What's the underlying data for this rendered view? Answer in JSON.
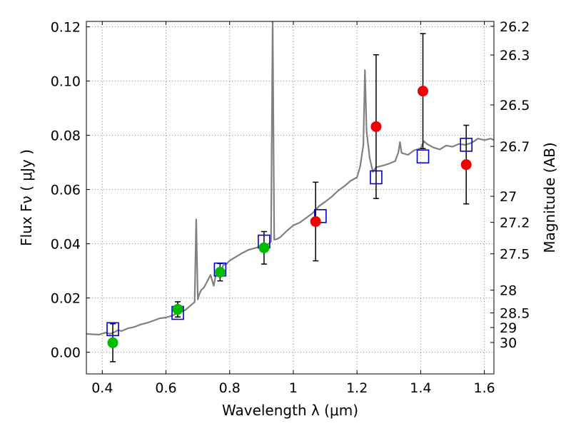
{
  "chart_data": {
    "type": "scatter",
    "title": "",
    "xlabel": "Wavelength  λ (μm)",
    "ylabel": "Flux  Fν  ( μJy )",
    "y2label": "Magnitude (AB)",
    "xlim": [
      0.35,
      1.63
    ],
    "ylim": [
      -0.008,
      0.122
    ],
    "grid": true,
    "x_ticks": [
      0.4,
      0.6,
      0.8,
      1.0,
      1.2,
      1.4,
      1.6
    ],
    "x_tick_labels": [
      "0.4",
      "0.6",
      "0.8",
      "1",
      "1.2",
      "1.4",
      "1.6"
    ],
    "y_ticks": [
      0.0,
      0.02,
      0.04,
      0.06,
      0.08,
      0.1,
      0.12
    ],
    "y_tick_labels": [
      "0.00",
      "0.02",
      "0.04",
      "0.06",
      "0.08",
      "0.10",
      "0.12"
    ],
    "y2_ticks": [
      {
        "label": "26.2",
        "flux": 0.1202
      },
      {
        "label": "26.3",
        "flux": 0.1096
      },
      {
        "label": "26.5",
        "flux": 0.0912
      },
      {
        "label": "26.7",
        "flux": 0.0759
      },
      {
        "label": "27",
        "flux": 0.0575
      },
      {
        "label": "27.2",
        "flux": 0.0479
      },
      {
        "label": "27.5",
        "flux": 0.0363
      },
      {
        "label": "28",
        "flux": 0.0229
      },
      {
        "label": "28.5",
        "flux": 0.0145
      },
      {
        "label": "29",
        "flux": 0.0091
      },
      {
        "label": "30",
        "flux": 0.0036
      }
    ],
    "colors": {
      "model_spectrum": "#808080",
      "model_photometry": "#0000cc",
      "optical_points": "#00bb00",
      "nir_points": "#ee0000",
      "errorbar": "#000000",
      "grid": "#7f7f7f"
    },
    "series": [
      {
        "type": "line",
        "x": [
          0.35,
          0.37,
          0.39,
          0.41,
          0.425,
          0.44,
          0.45,
          0.46,
          0.48,
          0.5,
          0.52,
          0.54,
          0.56,
          0.58,
          0.6,
          0.62,
          0.64,
          0.66,
          0.68,
          0.69,
          0.695,
          0.7,
          0.705,
          0.71,
          0.72,
          0.73,
          0.74,
          0.75,
          0.76,
          0.77,
          0.78,
          0.79,
          0.8,
          0.82,
          0.84,
          0.86,
          0.88,
          0.9,
          0.92,
          0.93,
          0.935,
          0.94,
          0.95,
          0.96,
          0.98,
          1.0,
          1.02,
          1.04,
          1.06,
          1.08,
          1.1,
          1.12,
          1.14,
          1.16,
          1.18,
          1.2,
          1.21,
          1.22,
          1.225,
          1.23,
          1.24,
          1.25,
          1.26,
          1.28,
          1.3,
          1.32,
          1.33,
          1.335,
          1.34,
          1.36,
          1.38,
          1.4,
          1.41,
          1.42,
          1.44,
          1.46,
          1.48,
          1.5,
          1.52,
          1.54,
          1.56,
          1.58,
          1.6,
          1.62,
          1.63
        ],
        "values": [
          0.0068,
          0.0066,
          0.0065,
          0.0072,
          0.0068,
          0.0075,
          0.0082,
          0.0078,
          0.0088,
          0.0093,
          0.0102,
          0.0108,
          0.0116,
          0.0125,
          0.0128,
          0.0135,
          0.0146,
          0.0155,
          0.0175,
          0.0185,
          0.049,
          0.0195,
          0.0215,
          0.0228,
          0.024,
          0.0262,
          0.0285,
          0.0245,
          0.0305,
          0.0275,
          0.0322,
          0.0325,
          0.0338,
          0.0352,
          0.0366,
          0.0378,
          0.0384,
          0.0392,
          0.0398,
          0.0408,
          0.123,
          0.0415,
          0.0418,
          0.0425,
          0.0448,
          0.0468,
          0.0478,
          0.0495,
          0.0512,
          0.0538,
          0.0555,
          0.0573,
          0.0595,
          0.0612,
          0.0632,
          0.0645,
          0.0685,
          0.0765,
          0.104,
          0.0815,
          0.0715,
          0.0665,
          0.0682,
          0.0688,
          0.0695,
          0.0705,
          0.0738,
          0.0775,
          0.0735,
          0.0728,
          0.0745,
          0.0752,
          0.0778,
          0.0768,
          0.0755,
          0.0748,
          0.0762,
          0.0758,
          0.0768,
          0.0765,
          0.0772,
          0.0788,
          0.0782,
          0.0788,
          0.0782
        ]
      },
      {
        "type": "scatter",
        "marker": "open-square",
        "x": [
          0.433,
          0.637,
          0.77,
          0.908,
          1.085,
          1.26,
          1.407,
          1.543
        ],
        "values": [
          0.0085,
          0.0145,
          0.0305,
          0.0408,
          0.0502,
          0.0645,
          0.0722,
          0.0765
        ]
      },
      {
        "type": "scatter",
        "marker": "filled-circle",
        "x": [
          0.433,
          0.637,
          0.77,
          0.908
        ],
        "values": [
          0.0035,
          0.0158,
          0.0295,
          0.0385
        ],
        "yerr": [
          0.007,
          0.0028,
          0.0032,
          0.006
        ]
      },
      {
        "type": "scatter",
        "marker": "filled-circle",
        "x": [
          1.07,
          1.26,
          1.407,
          1.543
        ],
        "values": [
          0.0482,
          0.0832,
          0.0963,
          0.0692
        ],
        "yerr": [
          0.0145,
          0.0265,
          0.0212,
          0.0145
        ]
      }
    ]
  }
}
